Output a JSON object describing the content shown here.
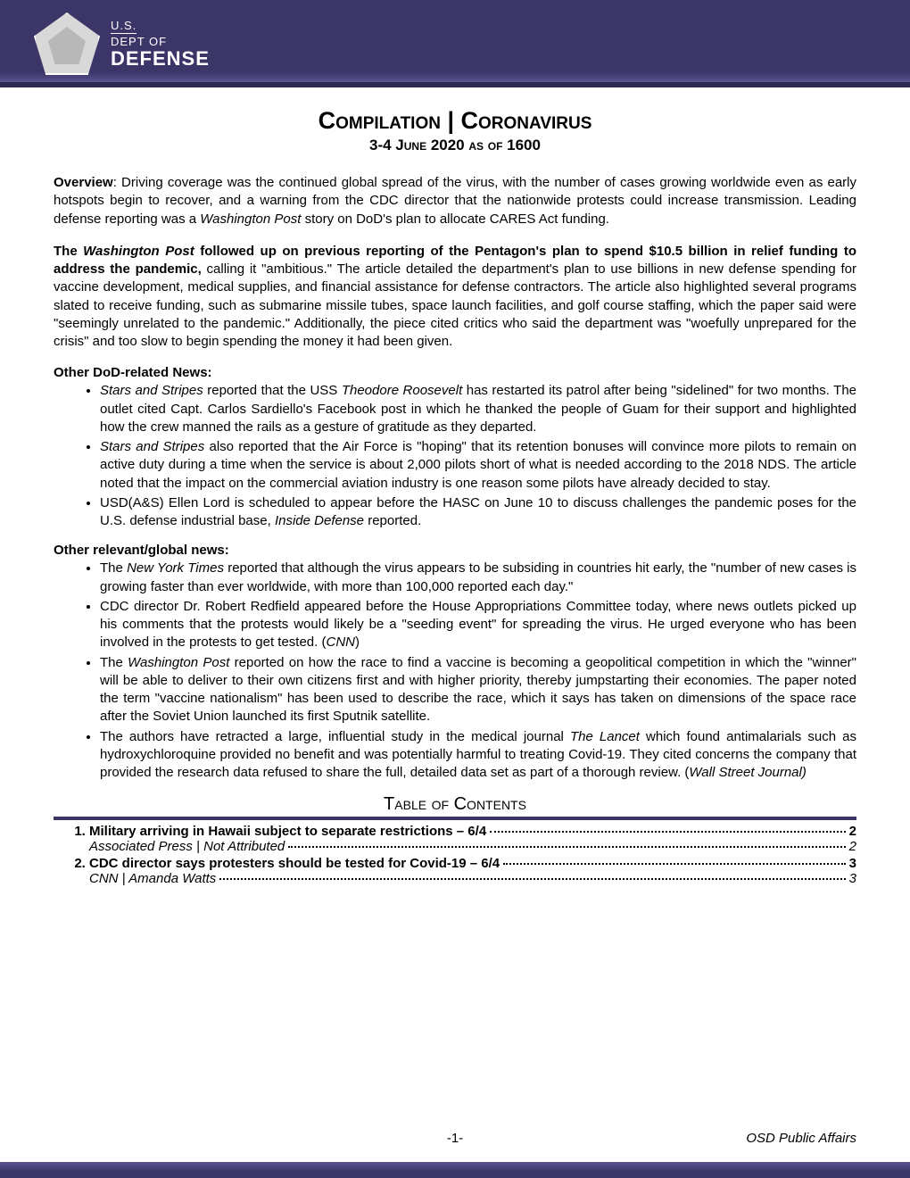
{
  "header": {
    "logo_line1": "U.S.",
    "logo_line2": "DEPT OF",
    "logo_line3": "DEFENSE"
  },
  "title": {
    "main": "Compilation | Coronavirus",
    "sub": "3-4 June 2020 as of 1600"
  },
  "overview_label": "Overview",
  "overview_text": ": Driving coverage was the continued global spread of the virus, with the number of cases growing worldwide even as early hotspots begin to recover, and a warning from the CDC director that the nationwide protests could increase transmission. Leading defense reporting was a ",
  "overview_italic1": "Washington Post",
  "overview_text2": " story on DoD's plan to allocate CARES Act funding.",
  "wapo_lead_bold1": "The ",
  "wapo_lead_italic": "Washington Post",
  "wapo_lead_bold2": " followed up on previous reporting of the Pentagon's plan to spend $10.5 billion in relief funding to address the pandemic,",
  "wapo_lead_rest": " calling it \"ambitious.\" The article detailed the department's plan to use billions in new defense spending for vaccine development, medical supplies, and financial assistance for defense contractors. The article also highlighted several programs slated to receive funding, such as submarine missile tubes, space launch facilities, and golf course staffing, which the paper said were \"seemingly unrelated to the pandemic.\" Additionally, the piece cited critics who said the department was \"woefully unprepared for the crisis\" and too slow to begin spending the money it had been given.",
  "dod_head": "Other DoD-related News:",
  "dod_b1_a": "Stars and Stripes",
  "dod_b1_b": " reported that the USS ",
  "dod_b1_c": "Theodore Roosevelt",
  "dod_b1_d": " has restarted its patrol after being \"sidelined\" for two months. The outlet cited Capt. Carlos Sardiello's Facebook post in which he thanked the people of Guam for their support and highlighted how the crew manned the rails as a gesture of gratitude as they departed.",
  "dod_b2_a": "Stars and Stripes",
  "dod_b2_b": " also reported that the Air Force is \"hoping\" that its retention bonuses will convince more pilots to remain on active duty during a time when the service is about 2,000 pilots short of what is needed according to the 2018 NDS. The article noted that the impact on the commercial aviation industry is one reason some pilots have already decided to stay.",
  "dod_b3_a": "USD(A&S) Ellen Lord is scheduled to appear before the HASC on June 10 to discuss challenges the pandemic poses for the U.S. defense industrial base, ",
  "dod_b3_b": "Inside Defense",
  "dod_b3_c": " reported.",
  "global_head": "Other relevant/global news:",
  "glob_b1_a": "The ",
  "glob_b1_b": "New York Times",
  "glob_b1_c": " reported that although the virus appears to be subsiding in countries hit early, the \"number of new cases is growing faster than ever worldwide, with more than 100,000 reported each day.\"",
  "glob_b2_a": "CDC director Dr. Robert Redfield appeared before the House Appropriations Committee today, where news outlets picked up his comments that the protests would likely be a \"seeding event\" for spreading the virus.  He urged everyone who has been involved in the protests to get tested. (",
  "glob_b2_b": "CNN",
  "glob_b2_c": ")",
  "glob_b3_a": "The ",
  "glob_b3_b": "Washington Post",
  "glob_b3_c": " reported on how the race to find a vaccine is becoming a geopolitical competition in which the \"winner\" will be able to deliver to their own citizens first and with higher priority, thereby jumpstarting their economies. The paper noted the term \"vaccine nationalism\" has been used to describe the race, which it says has taken on dimensions of the space race after the Soviet Union launched its first Sputnik satellite.",
  "glob_b4_a": "The authors have retracted a large, influential study in the medical journal ",
  "glob_b4_b": "The Lancet",
  "glob_b4_c": " which found antimalarials such as hydroxychloroquine provided no benefit and was potentially harmful to treating Covid-19. They cited concerns the company that provided the research data refused to share the full, detailed data set as part of a thorough review. (",
  "glob_b4_d": "Wall Street Journal)",
  "toc_title": "Table of Contents",
  "toc": {
    "item1_title": "Military arriving in Hawaii subject to separate restrictions – 6/4",
    "item1_page": "2",
    "item1_source": "Associated Press | Not Attributed",
    "item1_source_page": "2",
    "item2_title": "CDC director says protesters should be tested for Covid-19 – 6/4",
    "item2_page": "3",
    "item2_source": "CNN | Amanda Watts",
    "item2_source_page": "3"
  },
  "footer": {
    "page": "-1-",
    "affairs": "OSD Public Affairs"
  },
  "colors": {
    "band": "#3b3568",
    "band_light": "#5a5490",
    "text": "#000000",
    "bg": "#ffffff"
  }
}
